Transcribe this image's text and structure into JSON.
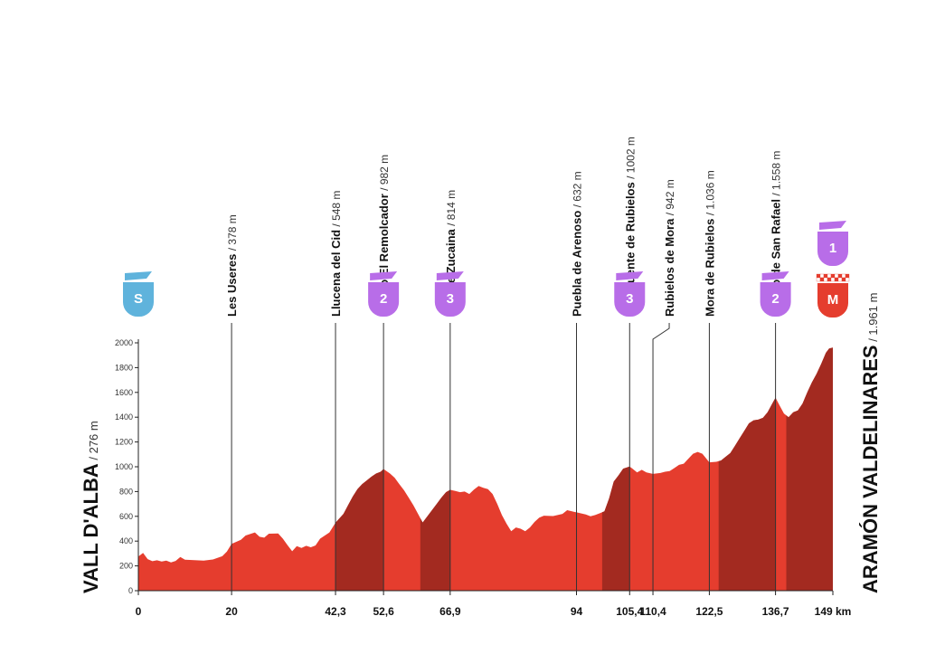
{
  "chart_data": {
    "type": "area",
    "xlabel": "",
    "ylabel": "",
    "x_unit": "km",
    "xlim": [
      0,
      149
    ],
    "ylim": [
      0,
      2000
    ],
    "yticks": [
      0,
      200,
      400,
      600,
      800,
      1000,
      1200,
      1400,
      1600,
      1800,
      2000
    ],
    "xticks": [
      {
        "value": 0,
        "label": "0"
      },
      {
        "value": 20,
        "label": "20"
      },
      {
        "value": 42.3,
        "label": "42,3"
      },
      {
        "value": 52.6,
        "label": "52,6"
      },
      {
        "value": 66.9,
        "label": "66,9"
      },
      {
        "value": 94,
        "label": "94"
      },
      {
        "value": 105.4,
        "label": "105,4"
      },
      {
        "value": 110.4,
        "label": "110,4"
      },
      {
        "value": 122.5,
        "label": "122,5"
      },
      {
        "value": 136.7,
        "label": "136,7"
      },
      {
        "value": 149,
        "label": "149 km"
      }
    ],
    "colors": {
      "flat": "#e53d2e",
      "climb": "#a32a20",
      "start": "#5fb3dc",
      "category": "#b86de8",
      "finish": "#e53d2e"
    },
    "profile": [
      [
        0,
        276
      ],
      [
        1,
        305
      ],
      [
        2,
        255
      ],
      [
        3,
        238
      ],
      [
        4,
        245
      ],
      [
        5,
        236
      ],
      [
        6,
        242
      ],
      [
        7,
        228
      ],
      [
        8,
        240
      ],
      [
        9,
        272
      ],
      [
        10,
        250
      ],
      [
        12,
        247
      ],
      [
        14,
        243
      ],
      [
        16,
        252
      ],
      [
        18,
        278
      ],
      [
        19,
        315
      ],
      [
        20,
        378
      ],
      [
        22,
        410
      ],
      [
        23,
        445
      ],
      [
        25,
        470
      ],
      [
        26,
        435
      ],
      [
        27,
        428
      ],
      [
        28,
        460
      ],
      [
        30,
        462
      ],
      [
        31,
        420
      ],
      [
        32,
        368
      ],
      [
        33,
        318
      ],
      [
        34,
        360
      ],
      [
        35,
        345
      ],
      [
        36,
        362
      ],
      [
        37,
        350
      ],
      [
        38,
        365
      ],
      [
        39,
        420
      ],
      [
        41,
        470
      ],
      [
        42.3,
        548
      ],
      [
        44,
        620
      ],
      [
        45,
        690
      ],
      [
        46,
        760
      ],
      [
        47,
        820
      ],
      [
        48,
        860
      ],
      [
        49,
        890
      ],
      [
        50,
        920
      ],
      [
        51,
        945
      ],
      [
        52,
        960
      ],
      [
        52.6,
        982
      ],
      [
        54,
        945
      ],
      [
        55,
        910
      ],
      [
        56,
        860
      ],
      [
        57,
        810
      ],
      [
        58,
        750
      ],
      [
        59,
        690
      ],
      [
        60,
        620
      ],
      [
        61,
        550
      ],
      [
        62,
        600
      ],
      [
        63,
        650
      ],
      [
        64,
        700
      ],
      [
        65,
        750
      ],
      [
        66,
        795
      ],
      [
        66.9,
        814
      ],
      [
        68,
        805
      ],
      [
        69,
        795
      ],
      [
        70,
        800
      ],
      [
        71,
        780
      ],
      [
        72,
        815
      ],
      [
        73,
        845
      ],
      [
        74,
        830
      ],
      [
        75,
        820
      ],
      [
        76,
        780
      ],
      [
        77,
        700
      ],
      [
        78,
        610
      ],
      [
        79,
        540
      ],
      [
        80,
        480
      ],
      [
        81,
        510
      ],
      [
        82,
        500
      ],
      [
        83,
        480
      ],
      [
        84,
        510
      ],
      [
        85,
        555
      ],
      [
        86,
        590
      ],
      [
        87,
        605
      ],
      [
        89,
        602
      ],
      [
        91,
        620
      ],
      [
        92,
        650
      ],
      [
        93,
        640
      ],
      [
        94,
        632
      ],
      [
        96,
        615
      ],
      [
        97,
        600
      ],
      [
        98,
        610
      ],
      [
        99,
        625
      ],
      [
        100,
        640
      ],
      [
        101,
        745
      ],
      [
        102,
        880
      ],
      [
        103,
        930
      ],
      [
        104,
        985
      ],
      [
        105.4,
        1002
      ],
      [
        106,
        985
      ],
      [
        107,
        955
      ],
      [
        108,
        975
      ],
      [
        109,
        955
      ],
      [
        110.4,
        942
      ],
      [
        112,
        950
      ],
      [
        113,
        960
      ],
      [
        114,
        965
      ],
      [
        115,
        990
      ],
      [
        116,
        1015
      ],
      [
        117,
        1025
      ],
      [
        118,
        1065
      ],
      [
        119,
        1105
      ],
      [
        120,
        1120
      ],
      [
        121,
        1105
      ],
      [
        122.5,
        1036
      ],
      [
        124,
        1040
      ],
      [
        125,
        1050
      ],
      [
        126,
        1080
      ],
      [
        127,
        1110
      ],
      [
        128,
        1170
      ],
      [
        129,
        1230
      ],
      [
        130,
        1290
      ],
      [
        131,
        1350
      ],
      [
        132,
        1375
      ],
      [
        133,
        1380
      ],
      [
        134,
        1395
      ],
      [
        135,
        1440
      ],
      [
        136,
        1510
      ],
      [
        136.7,
        1558
      ],
      [
        137.5,
        1500
      ],
      [
        138.5,
        1430
      ],
      [
        139.5,
        1400
      ],
      [
        140.5,
        1440
      ],
      [
        141.5,
        1455
      ],
      [
        142.5,
        1510
      ],
      [
        143.5,
        1600
      ],
      [
        144.5,
        1680
      ],
      [
        145.5,
        1750
      ],
      [
        146.5,
        1830
      ],
      [
        147.5,
        1920
      ],
      [
        148.2,
        1955
      ],
      [
        149,
        1961
      ]
    ],
    "climb_segments": [
      [
        42.3,
        52.6
      ],
      [
        60.5,
        66.9
      ],
      [
        99.5,
        105.4
      ],
      [
        124.5,
        136.7
      ],
      [
        139,
        149
      ]
    ],
    "places": [
      {
        "km": 20,
        "name": "Les Useres",
        "alt": "378 m"
      },
      {
        "km": 42.3,
        "name": "Llucena del Cid",
        "alt": "548 m"
      },
      {
        "km": 52.6,
        "name": "Puerto El Remolcador",
        "alt": "982 m"
      },
      {
        "km": 66.9,
        "name": "Alto de Zucaina",
        "alt": "814 m"
      },
      {
        "km": 94,
        "name": "Puebla de Arenoso",
        "alt": "632 m"
      },
      {
        "km": 105.4,
        "name": "Alto Fuente de Rubielos",
        "alt": "1002 m"
      },
      {
        "km": 110.4,
        "name": "Rubielos de Mora",
        "alt": "942 m"
      },
      {
        "km": 122.5,
        "name": "Mora de Rubielos",
        "alt": "1.036 m"
      },
      {
        "km": 136.7,
        "name": "Puerto de San Rafael",
        "alt": "1.558 m"
      }
    ],
    "badges": [
      {
        "km": 0,
        "label": "S",
        "kind": "start"
      },
      {
        "km": 52.6,
        "label": "2",
        "kind": "category"
      },
      {
        "km": 66.9,
        "label": "3",
        "kind": "category"
      },
      {
        "km": 105.4,
        "label": "3",
        "kind": "category"
      },
      {
        "km": 136.7,
        "label": "2",
        "kind": "category"
      },
      {
        "km": 149,
        "label": "M",
        "kind": "finish"
      },
      {
        "km": 149,
        "label": "1",
        "kind": "category-top"
      }
    ],
    "start": {
      "name": "VALL D'ALBA",
      "alt": " / 276 m"
    },
    "finish": {
      "name": "ARAMÓN VALDELINARES",
      "alt": " / 1.961 m"
    }
  }
}
